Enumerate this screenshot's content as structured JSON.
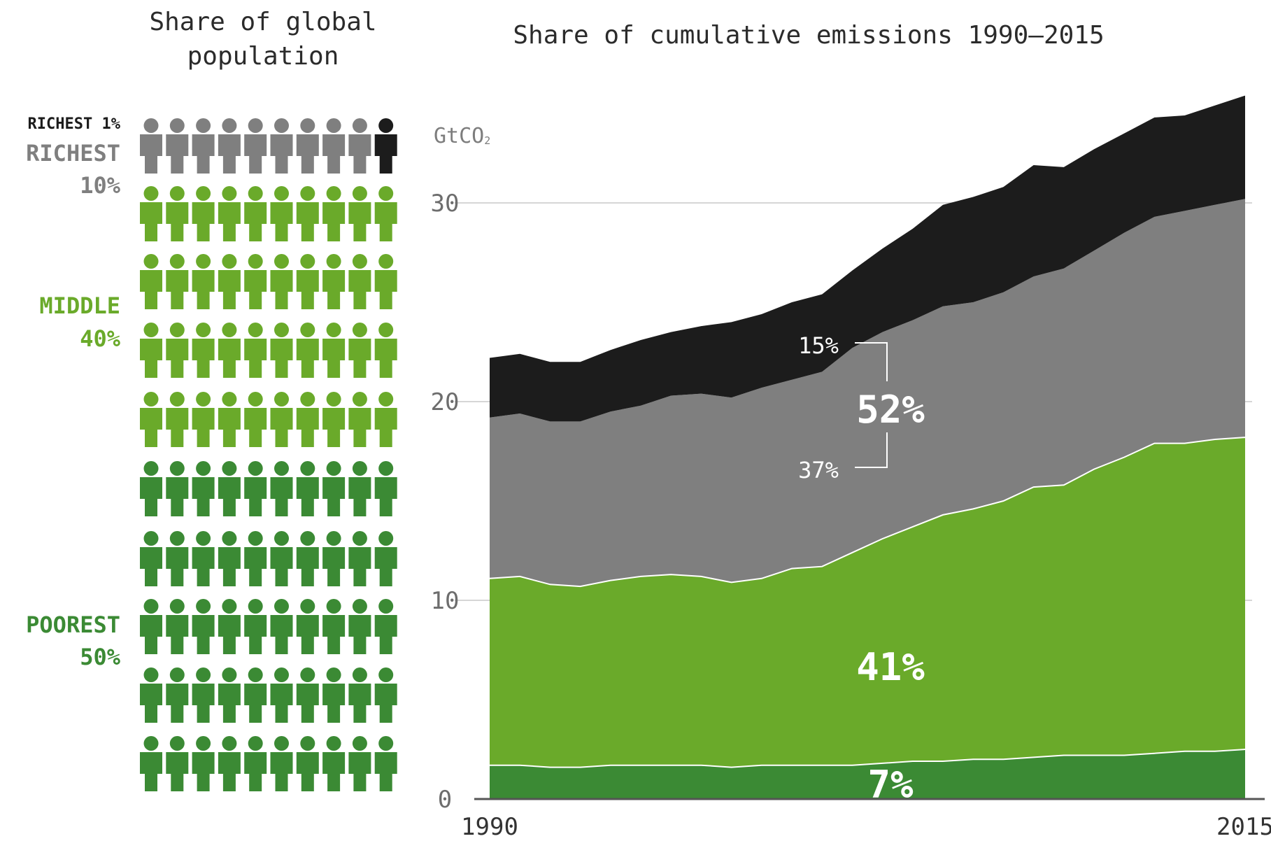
{
  "colors": {
    "richest1": "#1c1c1c",
    "richest10": "#7f7f7f",
    "middle40": "#6aaa2a",
    "poorest50": "#3b8a34",
    "axis": "#555555",
    "grid": "#c8c8c8",
    "text": "#2b2b2b"
  },
  "population": {
    "title_line1": "Share of global",
    "title_line2": "population",
    "icon": "person-icon",
    "groups": [
      {
        "key": "richest1",
        "label_lines": [
          "RICHEST 1%"
        ],
        "rows": 1
      },
      {
        "key": "richest10",
        "label_lines": [
          "RICHEST",
          "10%"
        ],
        "rows": 1
      },
      {
        "key": "middle40",
        "label_lines": [
          "MIDDLE",
          "40%"
        ],
        "rows": 4
      },
      {
        "key": "poorest50",
        "label_lines": [
          "POOREST",
          "50%"
        ],
        "rows": 5
      }
    ]
  },
  "chart_data": {
    "type": "area",
    "stacked": true,
    "title": "Share of cumulative emissions 1990–2015",
    "ylabel": "GtCO2",
    "xlim": [
      1990,
      2015
    ],
    "ylim": [
      0,
      33
    ],
    "yticks": [
      0,
      10,
      20,
      30
    ],
    "xticks": [
      1990,
      2015
    ],
    "grid": true,
    "x": [
      1990,
      1991,
      1992,
      1993,
      1994,
      1995,
      1996,
      1997,
      1998,
      1999,
      2000,
      2001,
      2002,
      2003,
      2004,
      2005,
      2006,
      2007,
      2008,
      2009,
      2010,
      2011,
      2012,
      2013,
      2014,
      2015
    ],
    "series": [
      {
        "key": "poorest50",
        "name": "POOREST 50%",
        "values": [
          1.7,
          1.7,
          1.6,
          1.6,
          1.7,
          1.7,
          1.7,
          1.7,
          1.6,
          1.7,
          1.7,
          1.7,
          1.7,
          1.8,
          1.9,
          1.9,
          2.0,
          2.0,
          2.1,
          2.2,
          2.2,
          2.2,
          2.3,
          2.4,
          2.4,
          2.5
        ],
        "share_label": "7%"
      },
      {
        "key": "middle40",
        "name": "MIDDLE 40%",
        "values": [
          9.4,
          9.5,
          9.2,
          9.1,
          9.3,
          9.5,
          9.6,
          9.5,
          9.3,
          9.4,
          9.9,
          10.0,
          10.7,
          11.3,
          11.8,
          12.4,
          12.6,
          13.0,
          13.6,
          13.6,
          14.4,
          15.0,
          15.6,
          15.5,
          15.7,
          15.7
        ],
        "share_label": "41%"
      },
      {
        "key": "richest10",
        "name": "RICHEST 10%",
        "values": [
          8.1,
          8.2,
          8.2,
          8.3,
          8.5,
          8.6,
          9.0,
          9.2,
          9.3,
          9.6,
          9.5,
          9.8,
          10.3,
          10.4,
          10.4,
          10.5,
          10.4,
          10.5,
          10.6,
          10.9,
          11.0,
          11.3,
          11.4,
          11.7,
          11.8,
          12.0
        ],
        "share_label": "37%"
      },
      {
        "key": "richest1",
        "name": "RICHEST 1%",
        "values": [
          3.0,
          3.0,
          3.0,
          3.0,
          3.1,
          3.3,
          3.2,
          3.4,
          3.8,
          3.7,
          3.9,
          3.9,
          3.9,
          4.2,
          4.6,
          5.1,
          5.3,
          5.3,
          5.6,
          5.1,
          5.1,
          5.0,
          5.0,
          4.8,
          5.0,
          5.2
        ],
        "share_label": "15%"
      }
    ],
    "annotations": {
      "combined_richest10_label": "52%"
    }
  }
}
